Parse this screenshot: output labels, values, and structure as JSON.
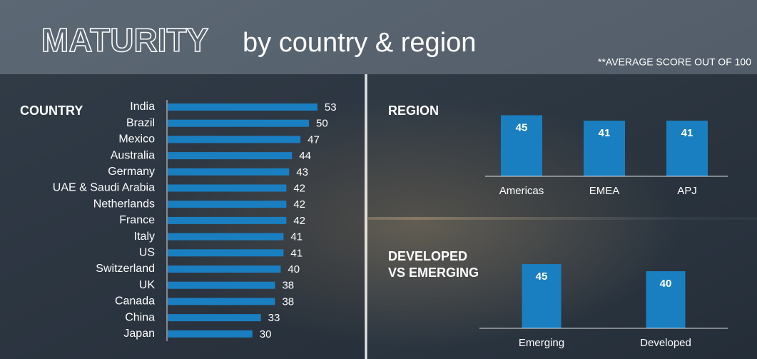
{
  "header": {
    "title_outline": "MATURITY",
    "title_rest": "by country & region",
    "note": "**AVERAGE SCORE OUT OF 100"
  },
  "chart_data": [
    {
      "type": "hbar",
      "title": "COUNTRY",
      "color": "#1a7fc1",
      "categories": [
        "India",
        "Brazil",
        "Mexico",
        "Australia",
        "Germany",
        "UAE & Saudi Arabia",
        "Netherlands",
        "France",
        "Italy",
        "US",
        "Switzerland",
        "UK",
        "Canada",
        "China",
        "Japan"
      ],
      "values": [
        53,
        50,
        47,
        44,
        43,
        42,
        42,
        42,
        41,
        41,
        40,
        38,
        38,
        33,
        30
      ]
    },
    {
      "type": "bar",
      "title": "REGION",
      "color": "#1a7fc1",
      "categories": [
        "Americas",
        "EMEA",
        "APJ"
      ],
      "values": [
        45,
        41,
        41
      ]
    },
    {
      "type": "bar",
      "title_lines": [
        "DEVELOPED",
        "VS EMERGING"
      ],
      "color": "#1a7fc1",
      "categories": [
        "Emerging",
        "Developed"
      ],
      "values": [
        45,
        40
      ]
    }
  ]
}
